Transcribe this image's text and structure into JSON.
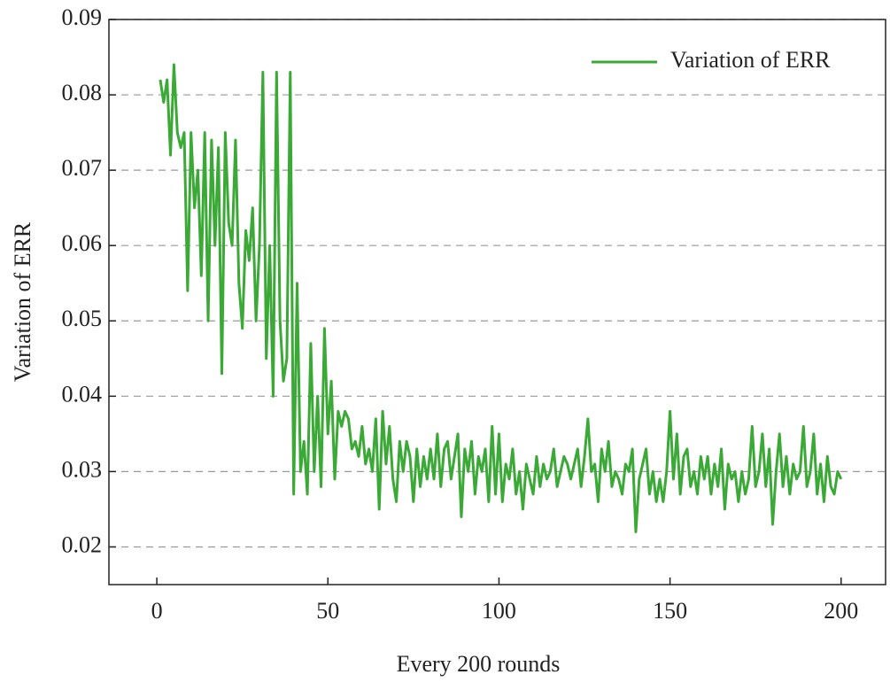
{
  "chart_data": {
    "type": "line",
    "y_label": "Variation of ERR",
    "x_label": "Every 200 rounds",
    "xlim": [
      -14,
      213
    ],
    "ylim": [
      0.015,
      0.09
    ],
    "xticks": [
      0,
      50,
      100,
      150,
      200
    ],
    "yticks": [
      0.02,
      0.03,
      0.04,
      0.05,
      0.06,
      0.07,
      0.08,
      0.09
    ],
    "grid": true,
    "legend": "upper right",
    "x": [
      1,
      2,
      3,
      4,
      5,
      6,
      7,
      8,
      9,
      10,
      11,
      12,
      13,
      14,
      15,
      16,
      17,
      18,
      19,
      20,
      21,
      22,
      23,
      24,
      25,
      26,
      27,
      28,
      29,
      30,
      31,
      32,
      33,
      34,
      35,
      36,
      37,
      38,
      39,
      40,
      41,
      42,
      43,
      44,
      45,
      46,
      47,
      48,
      49,
      50,
      51,
      52,
      53,
      54,
      55,
      56,
      57,
      58,
      59,
      60,
      61,
      62,
      63,
      64,
      65,
      66,
      67,
      68,
      69,
      70,
      71,
      72,
      73,
      74,
      75,
      76,
      77,
      78,
      79,
      80,
      81,
      82,
      83,
      84,
      85,
      86,
      87,
      88,
      89,
      90,
      91,
      92,
      93,
      94,
      95,
      96,
      97,
      98,
      99,
      100,
      101,
      102,
      103,
      104,
      105,
      106,
      107,
      108,
      109,
      110,
      111,
      112,
      113,
      114,
      115,
      116,
      117,
      118,
      119,
      120,
      121,
      122,
      123,
      124,
      125,
      126,
      127,
      128,
      129,
      130,
      131,
      132,
      133,
      134,
      135,
      136,
      137,
      138,
      139,
      140,
      141,
      142,
      143,
      144,
      145,
      146,
      147,
      148,
      149,
      150,
      151,
      152,
      153,
      154,
      155,
      156,
      157,
      158,
      159,
      160,
      161,
      162,
      163,
      164,
      165,
      166,
      167,
      168,
      169,
      170,
      171,
      172,
      173,
      174,
      175,
      176,
      177,
      178,
      179,
      180,
      181,
      182,
      183,
      184,
      185,
      186,
      187,
      188,
      189,
      190,
      191,
      192,
      193,
      194,
      195,
      196,
      197,
      198,
      199,
      200
    ],
    "series": [
      {
        "name": "Variation of ERR",
        "color": "#3aa935",
        "values": [
          0.082,
          0.079,
          0.082,
          0.072,
          0.084,
          0.075,
          0.073,
          0.075,
          0.054,
          0.075,
          0.065,
          0.07,
          0.056,
          0.075,
          0.05,
          0.074,
          0.06,
          0.073,
          0.043,
          0.075,
          0.063,
          0.06,
          0.074,
          0.055,
          0.049,
          0.062,
          0.058,
          0.065,
          0.05,
          0.06,
          0.083,
          0.045,
          0.06,
          0.04,
          0.083,
          0.05,
          0.042,
          0.045,
          0.083,
          0.027,
          0.055,
          0.03,
          0.034,
          0.027,
          0.047,
          0.03,
          0.04,
          0.028,
          0.049,
          0.035,
          0.042,
          0.029,
          0.038,
          0.036,
          0.038,
          0.037,
          0.033,
          0.034,
          0.032,
          0.036,
          0.031,
          0.033,
          0.03,
          0.037,
          0.025,
          0.038,
          0.031,
          0.036,
          0.029,
          0.026,
          0.034,
          0.03,
          0.034,
          0.032,
          0.026,
          0.033,
          0.028,
          0.032,
          0.029,
          0.033,
          0.029,
          0.035,
          0.028,
          0.033,
          0.034,
          0.029,
          0.032,
          0.035,
          0.024,
          0.033,
          0.03,
          0.034,
          0.027,
          0.032,
          0.03,
          0.033,
          0.026,
          0.036,
          0.027,
          0.035,
          0.026,
          0.031,
          0.029,
          0.033,
          0.027,
          0.03,
          0.025,
          0.031,
          0.029,
          0.027,
          0.032,
          0.028,
          0.031,
          0.029,
          0.03,
          0.033,
          0.028,
          0.03,
          0.032,
          0.031,
          0.029,
          0.031,
          0.033,
          0.028,
          0.032,
          0.037,
          0.03,
          0.031,
          0.026,
          0.033,
          0.03,
          0.034,
          0.028,
          0.03,
          0.029,
          0.027,
          0.031,
          0.03,
          0.033,
          0.022,
          0.029,
          0.031,
          0.033,
          0.027,
          0.03,
          0.026,
          0.029,
          0.026,
          0.03,
          0.038,
          0.029,
          0.035,
          0.027,
          0.032,
          0.033,
          0.028,
          0.03,
          0.027,
          0.032,
          0.029,
          0.032,
          0.027,
          0.031,
          0.028,
          0.033,
          0.025,
          0.031,
          0.029,
          0.03,
          0.026,
          0.03,
          0.027,
          0.029,
          0.036,
          0.028,
          0.03,
          0.035,
          0.028,
          0.033,
          0.023,
          0.03,
          0.035,
          0.028,
          0.032,
          0.027,
          0.031,
          0.029,
          0.03,
          0.036,
          0.028,
          0.03,
          0.035,
          0.027,
          0.031,
          0.026,
          0.032,
          0.028,
          0.027,
          0.03,
          0.029
        ]
      }
    ]
  }
}
